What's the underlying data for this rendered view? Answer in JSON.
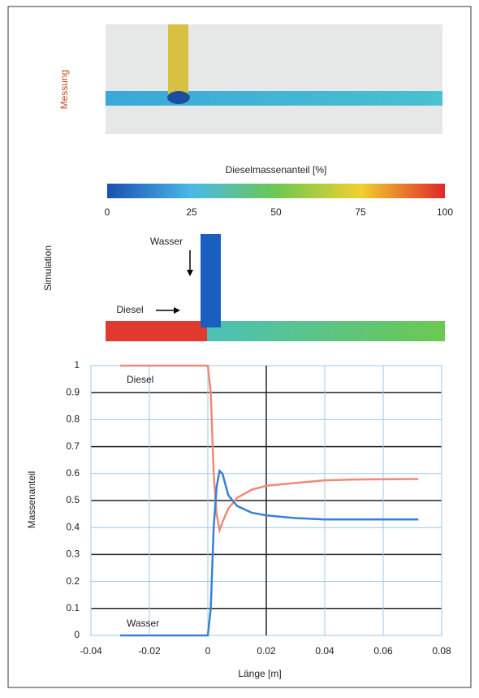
{
  "measurement": {
    "label": "Messung"
  },
  "colorbar": {
    "label": "Dieselmassenanteil [%]",
    "lim": [
      0,
      100
    ],
    "ticks": [
      0,
      25,
      50,
      75,
      100
    ]
  },
  "simulation": {
    "label": "Simulation",
    "inflow_top": "Wasser",
    "inflow_left": "Diesel"
  },
  "chart_data": {
    "type": "line",
    "xlabel": "Länge [m]",
    "ylabel": "Massenanteil",
    "x": [
      -0.03,
      0,
      0.001,
      0.002,
      0.003,
      0.004,
      0.005,
      0.007,
      0.01,
      0.015,
      0.02,
      0.03,
      0.04,
      0.05,
      0.072
    ],
    "series": [
      {
        "name": "Diesel",
        "color": "#f08a78",
        "values": [
          1,
          1,
          0.9,
          0.6,
          0.45,
          0.39,
          0.42,
          0.47,
          0.51,
          0.54,
          0.555,
          0.565,
          0.575,
          0.578,
          0.58
        ]
      },
      {
        "name": "Wasser",
        "color": "#3a80d8",
        "values": [
          0,
          0,
          0.1,
          0.4,
          0.55,
          0.61,
          0.6,
          0.52,
          0.48,
          0.455,
          0.445,
          0.435,
          0.43,
          0.43,
          0.43
        ]
      }
    ],
    "xlim": [
      -0.04,
      0.08
    ],
    "xticks": [
      -0.04,
      -0.02,
      0,
      0.02,
      0.04,
      0.06,
      0.08
    ],
    "ylim": [
      0,
      1
    ],
    "yticks": [
      0,
      0.1,
      0.2,
      0.3,
      0.4,
      0.5,
      0.6,
      0.7,
      0.8,
      0.9,
      1
    ],
    "grid": true
  }
}
